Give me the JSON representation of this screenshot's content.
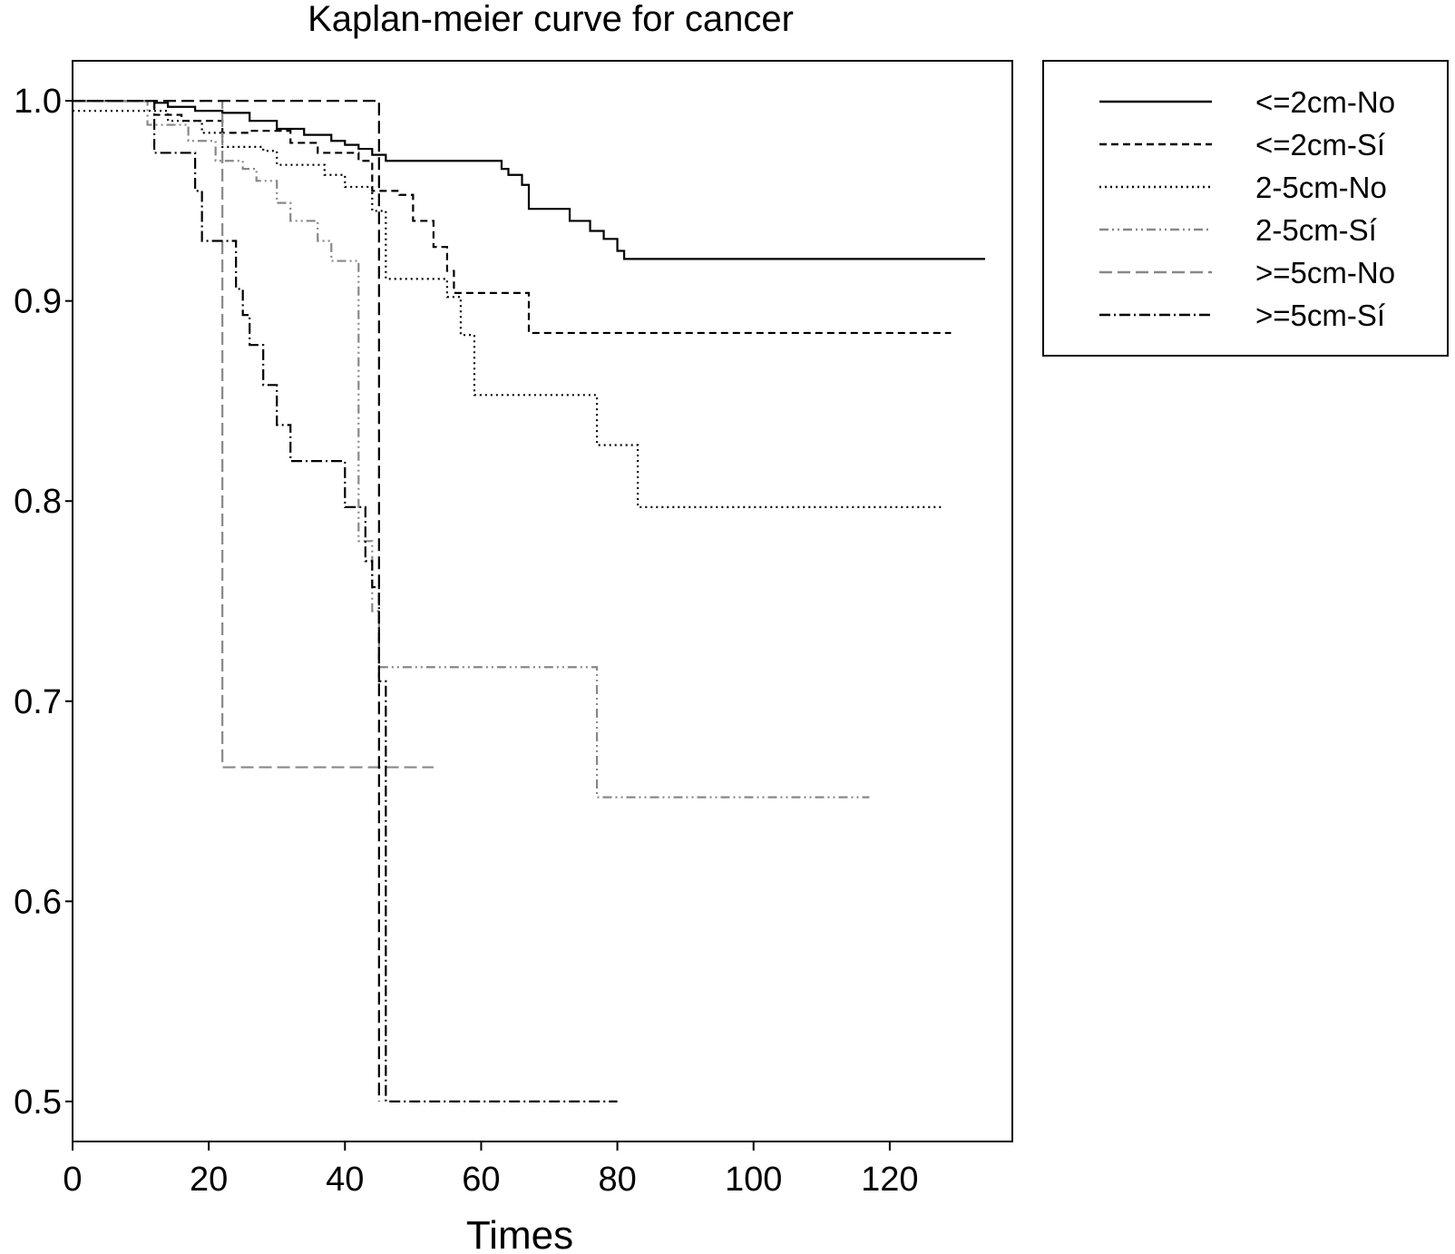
{
  "chart_data": {
    "type": "line",
    "title": "Kaplan-meier curve for cancer",
    "xlabel": "Times",
    "ylabel": "",
    "xlim": [
      0,
      138
    ],
    "ylim": [
      0.48,
      1.02
    ],
    "x_ticks": [
      0,
      20,
      40,
      60,
      80,
      100,
      120
    ],
    "y_ticks": [
      0.5,
      0.6,
      0.7,
      0.8,
      0.9,
      1.0
    ],
    "x_tick_labels": [
      "0",
      "20",
      "40",
      "60",
      "80",
      "100",
      "120"
    ],
    "y_tick_labels": [
      "0.5",
      "0.6",
      "0.7",
      "0.8",
      "0.9",
      "1.0"
    ],
    "grid": false,
    "legend_position": "outside-right-top",
    "step_style": "post",
    "series": [
      {
        "name": "<=2cm-No",
        "color": "#000000",
        "dash": "solid",
        "x": [
          0,
          12,
          14,
          18,
          22,
          26,
          30,
          34,
          38,
          40,
          42,
          44,
          46,
          62,
          63,
          64,
          66,
          67,
          73,
          76,
          78,
          80,
          81,
          134
        ],
        "y": [
          1.0,
          0.999,
          0.997,
          0.995,
          0.994,
          0.99,
          0.986,
          0.983,
          0.98,
          0.978,
          0.976,
          0.973,
          0.97,
          0.97,
          0.966,
          0.963,
          0.958,
          0.946,
          0.94,
          0.935,
          0.931,
          0.925,
          0.921,
          0.921
        ]
      },
      {
        "name": "<=2cm-Sí",
        "color": "#000000",
        "dash": "short-dash",
        "x": [
          0,
          12,
          16,
          22,
          26,
          32,
          36,
          42,
          44,
          48,
          50,
          53,
          55,
          56,
          58,
          66,
          67,
          129
        ],
        "y": [
          1.0,
          0.993,
          0.99,
          0.984,
          0.985,
          0.979,
          0.974,
          0.97,
          0.955,
          0.953,
          0.94,
          0.927,
          0.915,
          0.904,
          0.904,
          0.904,
          0.884,
          0.884
        ]
      },
      {
        "name": "2-5cm-No",
        "color": "#000000",
        "dash": "dotted",
        "x": [
          0,
          10,
          14,
          19,
          22,
          28,
          30,
          37,
          40,
          44,
          46,
          52,
          55,
          57,
          59,
          77,
          81,
          83,
          128
        ],
        "y": [
          0.995,
          0.995,
          0.99,
          0.984,
          0.977,
          0.975,
          0.968,
          0.963,
          0.957,
          0.945,
          0.911,
          0.911,
          0.902,
          0.883,
          0.853,
          0.828,
          0.828,
          0.797,
          0.797
        ]
      },
      {
        "name": "2-5cm-Sí",
        "color": "#888888",
        "dash": "dash-dot-dot",
        "x": [
          0,
          11,
          17,
          21,
          25,
          27,
          30,
          32,
          36,
          38,
          41,
          42,
          44,
          45,
          76,
          77,
          117
        ],
        "y": [
          1.0,
          0.988,
          0.98,
          0.97,
          0.966,
          0.96,
          0.949,
          0.94,
          0.93,
          0.92,
          0.92,
          0.78,
          0.745,
          0.717,
          0.717,
          0.652,
          0.652
        ]
      },
      {
        "name": ">=5cm-No",
        "color": "#888888",
        "dash": "long-dash",
        "x": [
          0,
          22,
          53
        ],
        "y": [
          1.0,
          0.667,
          0.667
        ]
      },
      {
        "name": ">=5cm-Sí",
        "color": "#000000",
        "dash": "dash-dot",
        "x": [
          0,
          12,
          18,
          19,
          20,
          21,
          23,
          24,
          25,
          26,
          28,
          30,
          32,
          40,
          43,
          44,
          45,
          46,
          80
        ],
        "y": [
          1.0,
          0.974,
          0.955,
          0.93,
          0.93,
          0.93,
          0.93,
          0.906,
          0.893,
          0.878,
          0.858,
          0.838,
          0.82,
          0.797,
          0.77,
          0.757,
          0.71,
          0.5,
          0.5
        ]
      },
      {
        "name": "",
        "color": "#000000",
        "dash": "long-dash",
        "x": [
          0,
          45,
          45
        ],
        "y": [
          1.0,
          1.0,
          0.5
        ]
      }
    ]
  }
}
